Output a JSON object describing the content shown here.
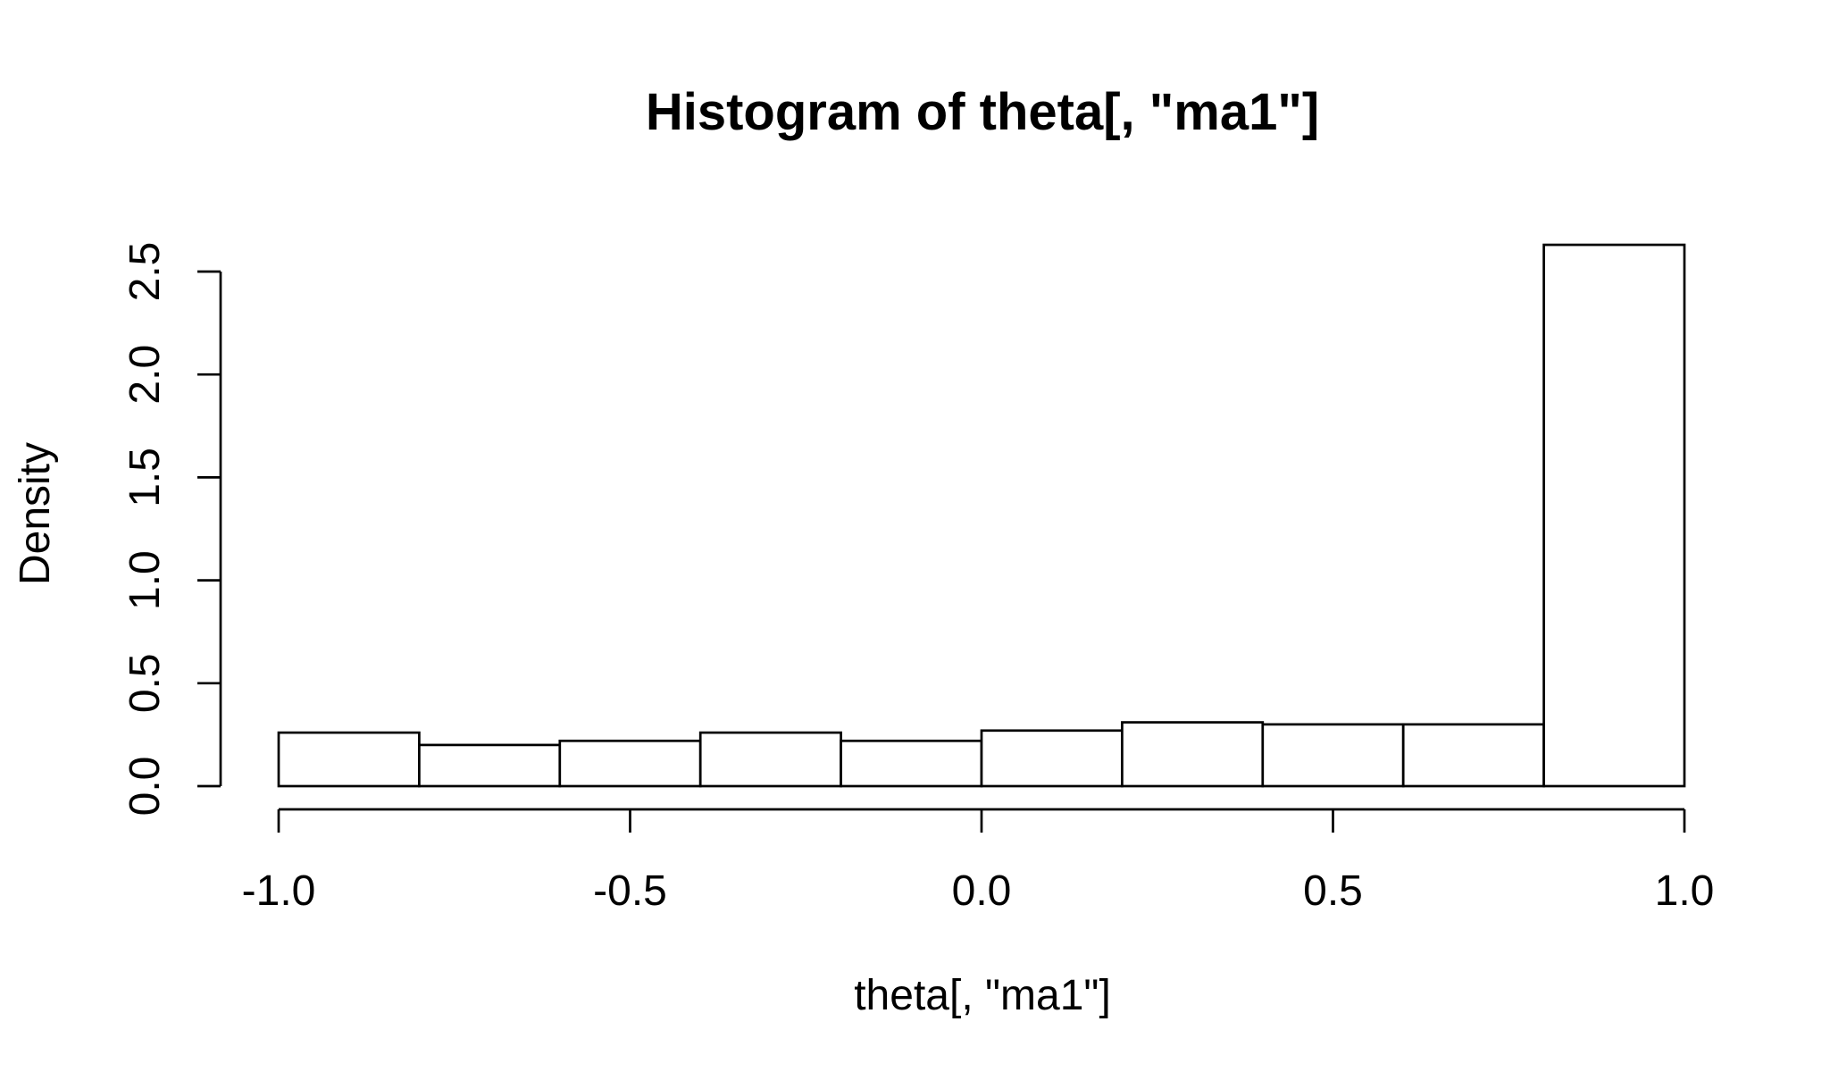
{
  "chart_data": {
    "type": "bar",
    "title": "Histogram of theta[, \"ma1\"]",
    "xlabel": "theta[, \"ma1\"]",
    "ylabel": "Density",
    "bins": [
      {
        "start": -1.0,
        "end": -0.8,
        "density": 0.26
      },
      {
        "start": -0.8,
        "end": -0.6,
        "density": 0.2
      },
      {
        "start": -0.6,
        "end": -0.4,
        "density": 0.22
      },
      {
        "start": -0.4,
        "end": -0.2,
        "density": 0.26
      },
      {
        "start": -0.2,
        "end": 0.0,
        "density": 0.22
      },
      {
        "start": 0.0,
        "end": 0.2,
        "density": 0.27
      },
      {
        "start": 0.2,
        "end": 0.4,
        "density": 0.31
      },
      {
        "start": 0.4,
        "end": 0.6,
        "density": 0.3
      },
      {
        "start": 0.6,
        "end": 0.8,
        "density": 0.3
      },
      {
        "start": 0.8,
        "end": 1.0,
        "density": 2.63
      }
    ],
    "xlim": [
      -1.0,
      1.0
    ],
    "ylim": [
      0,
      2.5
    ],
    "x_ticks": [
      -1.0,
      -0.5,
      0.0,
      0.5,
      1.0
    ],
    "x_tick_labels": [
      "-1.0",
      "-0.5",
      "0.0",
      "0.5",
      "1.0"
    ],
    "y_ticks": [
      0.0,
      0.5,
      1.0,
      1.5,
      2.0,
      2.5
    ],
    "y_tick_labels": [
      "0.0",
      "0.5",
      "1.0",
      "1.5",
      "2.0",
      "2.5"
    ],
    "grid": false,
    "bar_fill": "#ffffff",
    "bar_stroke": "#000000"
  }
}
